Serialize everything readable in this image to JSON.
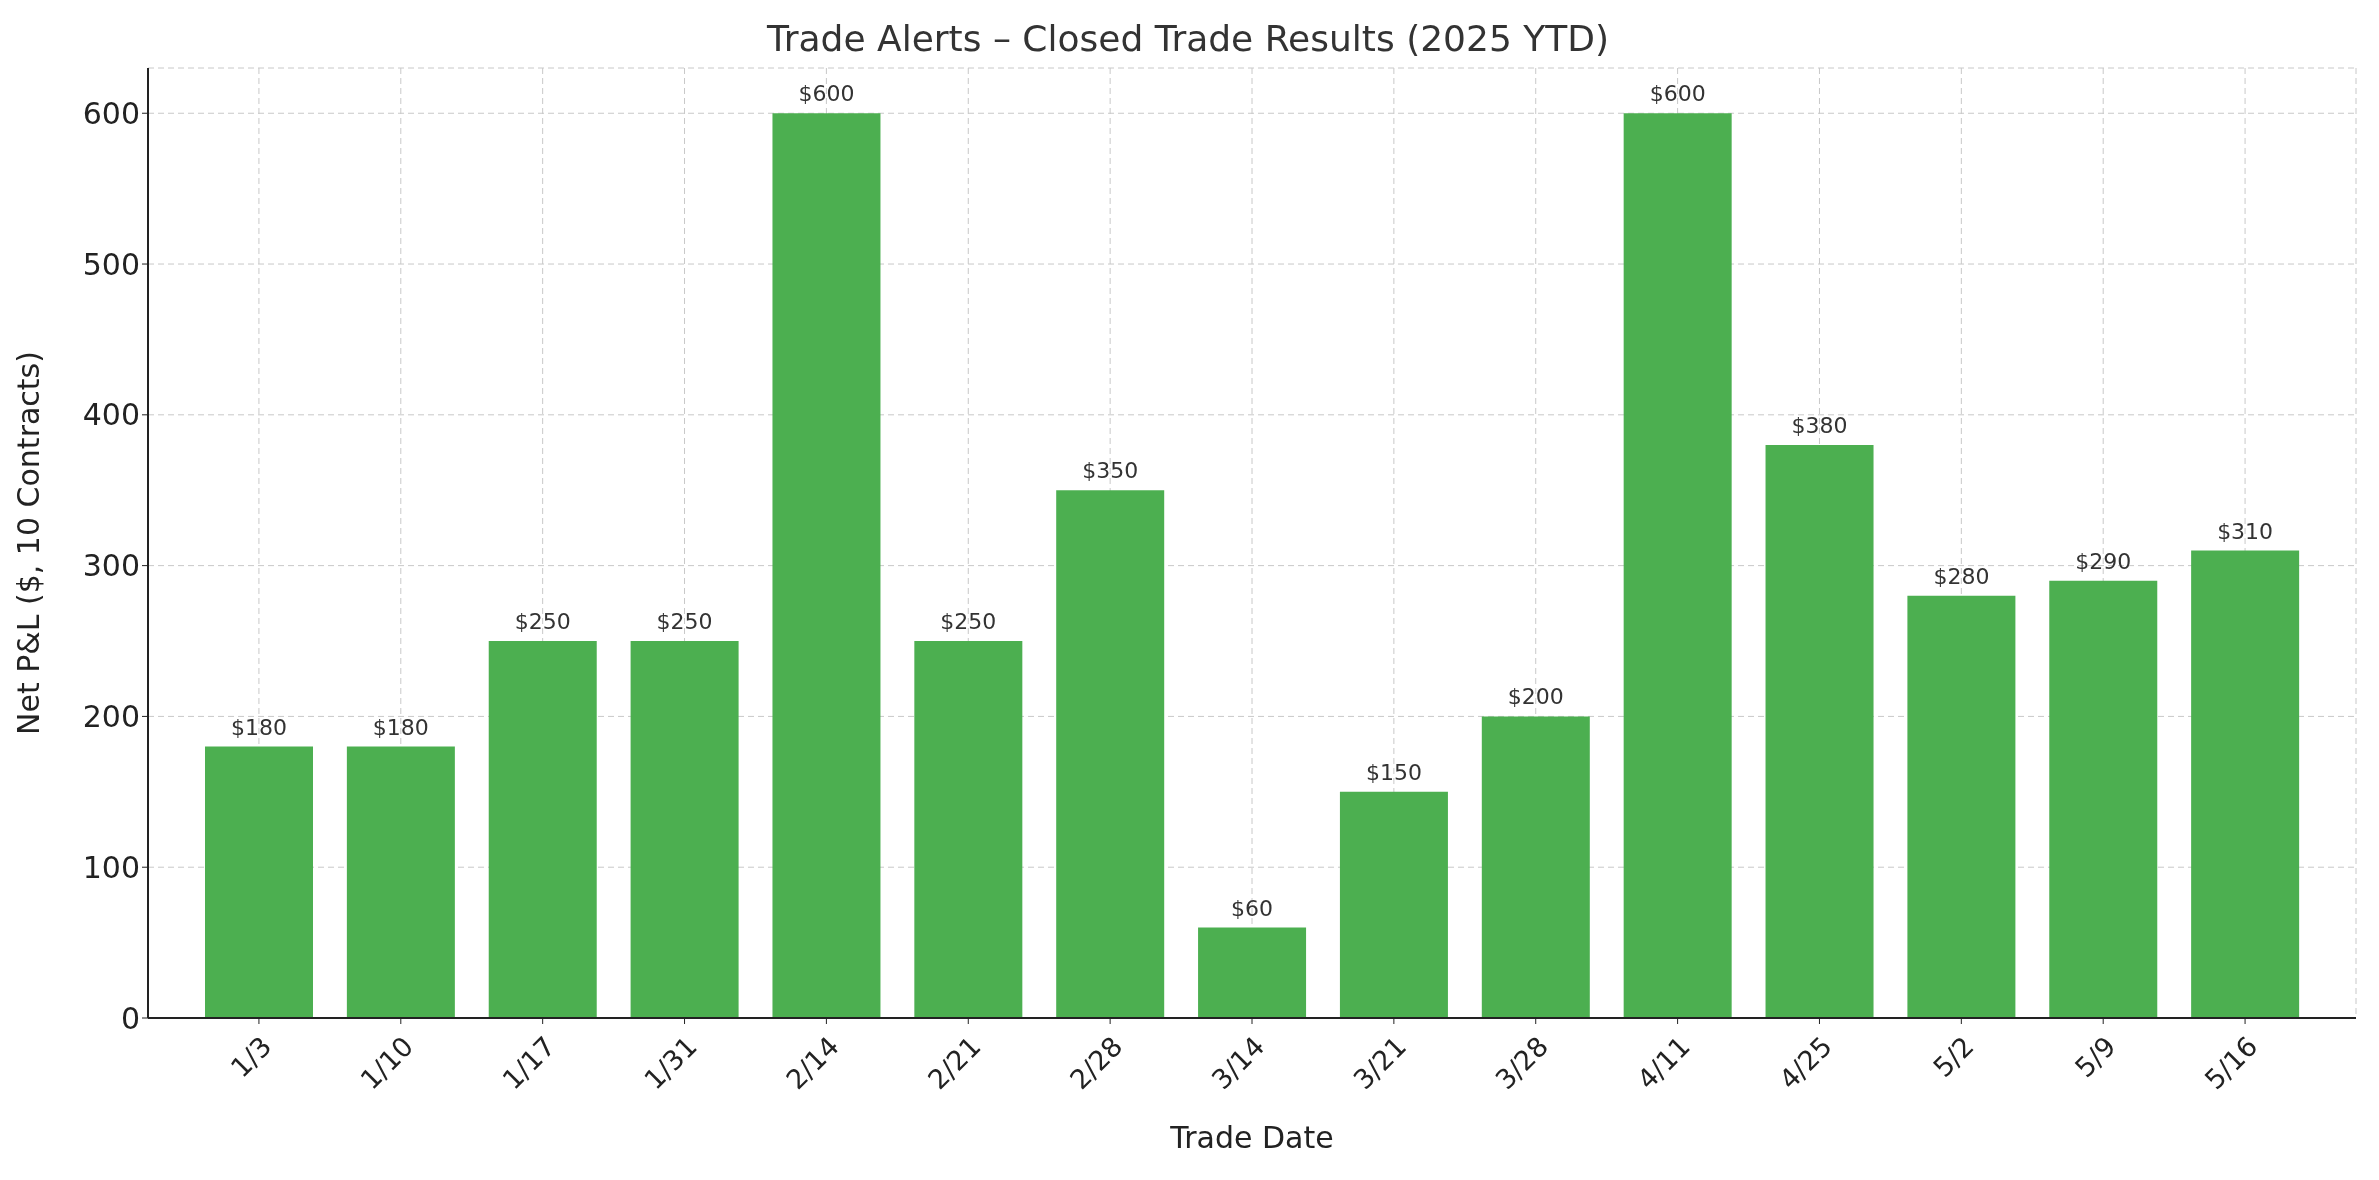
{
  "chart_data": {
    "type": "bar",
    "title": "Trade Alerts – Closed Trade Results (2025 YTD)",
    "xlabel": "Trade Date",
    "ylabel": "Net P&L ($, 10 Contracts)",
    "categories": [
      "1/3",
      "1/10",
      "1/17",
      "1/31",
      "2/14",
      "2/21",
      "2/28",
      "3/14",
      "3/21",
      "3/28",
      "4/11",
      "4/25",
      "5/2",
      "5/9",
      "5/16"
    ],
    "values": [
      180,
      180,
      250,
      250,
      600,
      250,
      350,
      60,
      150,
      200,
      600,
      380,
      280,
      290,
      310
    ],
    "value_labels": [
      "$180",
      "$180",
      "$250",
      "$250",
      "$600",
      "$250",
      "$350",
      "$60",
      "$150",
      "$200",
      "$600",
      "$380",
      "$280",
      "$290",
      "$310"
    ],
    "color": "#4caf50",
    "ylim": [
      0,
      630
    ],
    "yticks": [
      0,
      100,
      200,
      300,
      400,
      500,
      600
    ],
    "grid": true
  }
}
